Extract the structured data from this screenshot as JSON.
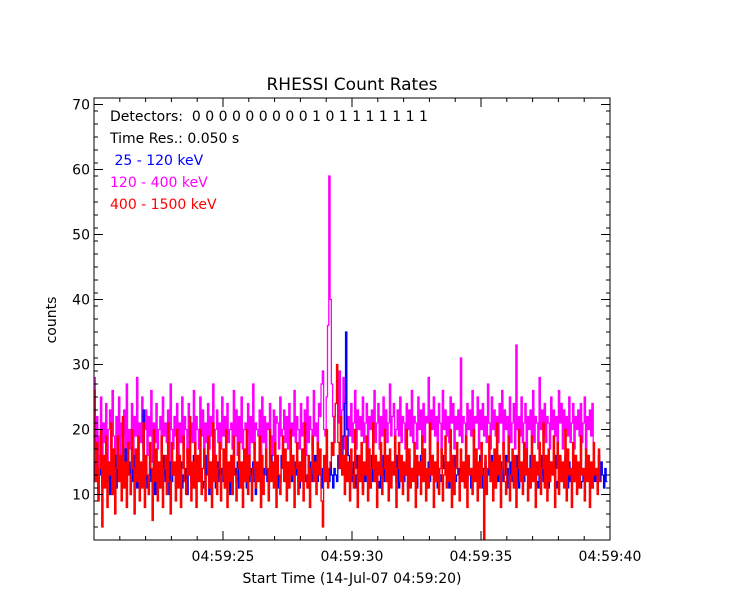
{
  "chart_data": {
    "type": "line",
    "title": "RHESSI Count Rates",
    "xlabel": "Start Time (14-Jul-07 04:59:20)",
    "ylabel": "counts",
    "xlim": [
      20.0,
      40.0
    ],
    "ylim": [
      3,
      71
    ],
    "x_ticks": [
      {
        "value": 25,
        "label": "04:59:25"
      },
      {
        "value": 30,
        "label": "04:59:30"
      },
      {
        "value": 35,
        "label": "04:59:35"
      },
      {
        "value": 40,
        "label": "04:59:40"
      }
    ],
    "y_ticks": [
      {
        "value": 10,
        "label": "10"
      },
      {
        "value": 20,
        "label": "20"
      },
      {
        "value": 30,
        "label": "30"
      },
      {
        "value": 40,
        "label": "40"
      },
      {
        "value": 50,
        "label": "50"
      },
      {
        "value": 60,
        "label": "60"
      },
      {
        "value": 70,
        "label": "70"
      }
    ],
    "annotations": {
      "detectors": "Detectors:  0 0 0 0 0 0 0 0 0 1 0 1 1 1 1 1 1 1",
      "time_res": "Time Res.: 0.050 s"
    },
    "series": [
      {
        "name": " 25 - 120 keV",
        "color": "#0000ff",
        "step": 0.05,
        "x_start": 20.0,
        "values": [
          15,
          12,
          14,
          10,
          13,
          16,
          11,
          14,
          13,
          17,
          12,
          15,
          10,
          14,
          13,
          12,
          16,
          11,
          14,
          12,
          15,
          13,
          11,
          14,
          17,
          12,
          13,
          15,
          10,
          14,
          12,
          16,
          13,
          11,
          15,
          14,
          12,
          13,
          23,
          12,
          14,
          11,
          13,
          15,
          12,
          14,
          16,
          10,
          13,
          12,
          15,
          14,
          11,
          13,
          16,
          12,
          14,
          13,
          10,
          15,
          12,
          14,
          13,
          11,
          16,
          12,
          14,
          15,
          11,
          13,
          12,
          14,
          10,
          13,
          15,
          12,
          14,
          16,
          11,
          13,
          12,
          15,
          13,
          14,
          11,
          12,
          16,
          13,
          14,
          10,
          15,
          12,
          13,
          14,
          11,
          15,
          12,
          16,
          13,
          14,
          12,
          11,
          15,
          13,
          14,
          10,
          12,
          16,
          13,
          14,
          12,
          15,
          11,
          13,
          14,
          12,
          15,
          13,
          11,
          16,
          12,
          14,
          13,
          15,
          12,
          10,
          14,
          13,
          16,
          11,
          12,
          14,
          13,
          15,
          12,
          11,
          14,
          16,
          13,
          12,
          15,
          14,
          11,
          13,
          12,
          16,
          14,
          13,
          12,
          15,
          11,
          14,
          13,
          12,
          16,
          15,
          13,
          14,
          12,
          11,
          15,
          13,
          14,
          16,
          12,
          13,
          11,
          15,
          14,
          12,
          13,
          16,
          14,
          12,
          15,
          13,
          11,
          14,
          12,
          13,
          16,
          14,
          12,
          15,
          13,
          11,
          14,
          13,
          12,
          16,
          15,
          14,
          13,
          19,
          24,
          35,
          20,
          16,
          13,
          14,
          12,
          15,
          11,
          13,
          16,
          12,
          14,
          15,
          11,
          13,
          12,
          14,
          15,
          13,
          11,
          16,
          12,
          14,
          13,
          15,
          12,
          11,
          14,
          13,
          16,
          12,
          15,
          14,
          11,
          13,
          12,
          15,
          14,
          13,
          12,
          16,
          11,
          14,
          13,
          15,
          12,
          14,
          13,
          11,
          16,
          12,
          14,
          13,
          15,
          12,
          11,
          14,
          13,
          16,
          15,
          12,
          14,
          13,
          11,
          15,
          12,
          14,
          16,
          13,
          12,
          15,
          11,
          14,
          13,
          12,
          16,
          14,
          15,
          13,
          12,
          11,
          14,
          13,
          15,
          16,
          12,
          13,
          14,
          11,
          15,
          12,
          13,
          14,
          16,
          12,
          15,
          13,
          11,
          14,
          12,
          13,
          15,
          14,
          12,
          16,
          13,
          11,
          14,
          15,
          12,
          13,
          14,
          12,
          16,
          13,
          15,
          11,
          14,
          12,
          13,
          15,
          14,
          12,
          13,
          16,
          11,
          14,
          13,
          15,
          12,
          14,
          13,
          12,
          16,
          11,
          15,
          14,
          13,
          12,
          14,
          15,
          13,
          11,
          16,
          12,
          14,
          13,
          15,
          12,
          11,
          14,
          13,
          16,
          12,
          15,
          14,
          13,
          11,
          12,
          15,
          14,
          13,
          16,
          12,
          11,
          14,
          15,
          13,
          12,
          14,
          16,
          13,
          11,
          15,
          12,
          14,
          13,
          12,
          16,
          15,
          14,
          13,
          11,
          12,
          14,
          13,
          15,
          16,
          12,
          13,
          14,
          11,
          15,
          12,
          13,
          14,
          16,
          12,
          15,
          13,
          11,
          14,
          12
        ]
      },
      {
        "name": "120 - 400 keV",
        "color": "#ff00ff",
        "step": 0.05,
        "x_start": 20.0,
        "values": [
          28,
          17,
          22,
          14,
          19,
          25,
          16,
          21,
          18,
          24,
          15,
          20,
          23,
          17,
          26,
          19,
          14,
          22,
          18,
          25,
          16,
          21,
          19,
          23,
          15,
          27,
          18,
          20,
          17,
          24,
          16,
          22,
          19,
          28,
          15,
          21,
          18,
          25,
          17,
          20,
          23,
          16,
          22,
          19,
          26,
          15,
          21,
          18,
          24,
          17,
          20,
          22,
          16,
          25,
          19,
          21,
          18,
          23,
          15,
          27,
          20,
          17,
          22,
          19,
          24,
          16,
          21,
          18,
          25,
          17,
          22,
          20,
          16,
          24,
          19,
          21,
          18,
          26,
          15,
          22,
          20,
          17,
          25,
          19,
          23,
          16,
          21,
          18,
          24,
          17,
          22,
          19,
          27,
          16,
          20,
          23,
          18,
          21,
          17,
          25,
          19,
          22,
          16,
          24,
          18,
          20,
          21,
          17,
          26,
          19,
          23,
          16,
          22,
          18,
          25,
          17,
          20,
          21,
          19,
          24,
          16,
          22,
          18,
          27,
          17,
          21,
          20,
          19,
          23,
          16,
          25,
          18,
          22,
          17,
          21,
          20,
          24,
          19,
          16,
          23,
          18,
          22,
          21,
          17,
          25,
          19,
          20,
          23,
          18,
          22,
          17,
          24,
          16,
          21,
          19,
          26,
          18,
          22,
          20,
          17,
          24,
          19,
          21,
          23,
          16,
          25,
          18,
          22,
          20,
          17,
          26,
          19,
          21,
          18,
          24,
          22,
          27,
          29,
          20,
          19,
          25,
          36,
          59,
          40,
          27,
          22,
          18,
          24,
          26,
          21,
          29,
          19,
          23,
          28,
          17,
          25,
          20,
          22,
          19,
          24,
          18,
          21,
          26,
          17,
          23,
          20,
          22,
          19,
          25,
          18,
          21,
          24,
          17,
          22,
          20,
          23,
          19,
          26,
          18,
          21,
          24,
          17,
          22,
          19,
          25,
          20,
          23,
          18,
          21,
          27,
          19,
          22,
          24,
          17,
          20,
          23,
          19,
          25,
          18,
          22,
          21,
          17,
          24,
          20,
          23,
          19,
          26,
          18,
          22,
          21,
          17,
          25,
          20,
          23,
          19,
          24,
          18,
          22,
          21,
          28,
          17,
          23,
          20,
          25,
          19,
          22,
          18,
          24,
          21,
          17,
          26,
          20,
          23,
          19,
          22,
          18,
          25,
          21,
          24,
          17,
          22,
          20,
          23,
          19,
          31,
          18,
          22,
          21,
          17,
          24,
          20,
          23,
          19,
          26,
          18,
          22,
          21,
          25,
          17,
          23,
          20,
          24,
          19,
          22,
          18,
          27,
          21,
          17,
          25,
          20,
          23,
          19,
          22,
          18,
          24,
          21,
          26,
          17,
          23,
          20,
          22,
          19,
          25,
          18,
          21,
          24,
          17,
          33,
          20,
          22,
          19,
          25,
          18,
          21,
          24,
          17,
          22,
          20,
          23,
          19,
          26,
          18,
          22,
          21,
          17,
          28,
          20,
          23,
          19,
          24,
          18,
          22,
          21,
          17,
          25,
          20,
          23,
          19,
          22,
          18,
          26,
          21,
          24,
          17,
          23,
          20,
          22,
          19,
          25,
          18,
          21,
          24,
          17,
          22,
          20,
          23,
          19,
          24,
          18,
          21,
          25,
          17,
          22,
          20,
          23,
          19,
          24,
          18
        ]
      },
      {
        "name": "400 - 1500 keV",
        "color": "#ff0000",
        "step": 0.05,
        "x_start": 20.0,
        "values": [
          26,
          12,
          18,
          9,
          14,
          20,
          5,
          16,
          11,
          19,
          8,
          15,
          13,
          21,
          10,
          17,
          7,
          14,
          19,
          12,
          16,
          9,
          22,
          11,
          15,
          8,
          18,
          13,
          10,
          20,
          14,
          7,
          17,
          12,
          19,
          9,
          15,
          11,
          21,
          8,
          16,
          13,
          10,
          18,
          14,
          6,
          20,
          12,
          17,
          9,
          15,
          11,
          19,
          8,
          14,
          16,
          10,
          21,
          12,
          7,
          18,
          13,
          15,
          9,
          20,
          11,
          16,
          8,
          14,
          19,
          12,
          10,
          17,
          13,
          22,
          9,
          15,
          11,
          18,
          8,
          16,
          12,
          20,
          10,
          14,
          17,
          9,
          13,
          19,
          11,
          15,
          8,
          21,
          12,
          16,
          10,
          14,
          18,
          9,
          13,
          17,
          11,
          20,
          8,
          15,
          12,
          16,
          10,
          19,
          13,
          9,
          14,
          18,
          11,
          15,
          8,
          17,
          12,
          20,
          10,
          16,
          13,
          9,
          14,
          18,
          11,
          15,
          12,
          19,
          8,
          16,
          10,
          13,
          17,
          14,
          9,
          20,
          12,
          15,
          11,
          18,
          8,
          16,
          13,
          10,
          14,
          19,
          12,
          17,
          9,
          15,
          11,
          20,
          13,
          16,
          8,
          14,
          18,
          10,
          15,
          12,
          17,
          9,
          21,
          13,
          11,
          16,
          8,
          14,
          19,
          12,
          15,
          10,
          18,
          13,
          17,
          9,
          5,
          16,
          12,
          20,
          11,
          14,
          15,
          18,
          16,
          22,
          24,
          30,
          18,
          14,
          22,
          13,
          16,
          10,
          19,
          12,
          15,
          9,
          17,
          13,
          11,
          20,
          14,
          8,
          16,
          12,
          18,
          10,
          15,
          13,
          19,
          9,
          17,
          11,
          14,
          21,
          12,
          16,
          8,
          15,
          13,
          18,
          10,
          14,
          20,
          12,
          16,
          9,
          17,
          11,
          15,
          13,
          19,
          8,
          14,
          18,
          12,
          16,
          10,
          15,
          13,
          20,
          9,
          17,
          11,
          14,
          12,
          18,
          8,
          16,
          13,
          15,
          10,
          19,
          12,
          17,
          9,
          14,
          11,
          21,
          13,
          16,
          8,
          15,
          12,
          18,
          10,
          14,
          17,
          9,
          13,
          19,
          11,
          15,
          12,
          20,
          8,
          16,
          10,
          14,
          18,
          13,
          9,
          17,
          12,
          15,
          11,
          19,
          8,
          16,
          13,
          14,
          10,
          20,
          12,
          17,
          9,
          15,
          11,
          18,
          13,
          3,
          16,
          10,
          14,
          19,
          12,
          15,
          9,
          17,
          11,
          21,
          13,
          16,
          8,
          14,
          18,
          12,
          10,
          15,
          19,
          9,
          13,
          17,
          11,
          16,
          8,
          14,
          20,
          12,
          15,
          10,
          18,
          13,
          17,
          9,
          14,
          11,
          19,
          12,
          16,
          8,
          15,
          13,
          18,
          10,
          14,
          21,
          11,
          16,
          9,
          17,
          12,
          15,
          13,
          19,
          8,
          14,
          18,
          10,
          16,
          12,
          15,
          11,
          20,
          9,
          17,
          13,
          14,
          8,
          18,
          12,
          16,
          10,
          15,
          11,
          19,
          13,
          14,
          9,
          17,
          12,
          16,
          8,
          15,
          11,
          18,
          13,
          14,
          10,
          17,
          12
        ]
      }
    ]
  }
}
